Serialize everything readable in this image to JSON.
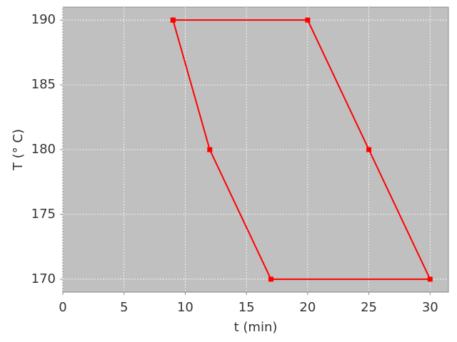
{
  "chart_data": {
    "type": "line",
    "x_label": "t (min)",
    "y_label": "T (° C)",
    "x": [
      9,
      20,
      25,
      30,
      17,
      12,
      9
    ],
    "series": [
      {
        "color": "#ff0000",
        "values": [
          190,
          190,
          180,
          170,
          170,
          180,
          190
        ]
      }
    ],
    "xlim": [
      0,
      31.5
    ],
    "ylim": [
      169,
      191
    ],
    "xticks": [
      0,
      5,
      10,
      15,
      20,
      25,
      30
    ],
    "yticks": [
      170,
      175,
      180,
      185,
      190
    ],
    "grid": true,
    "background": "#c0c0c0"
  }
}
